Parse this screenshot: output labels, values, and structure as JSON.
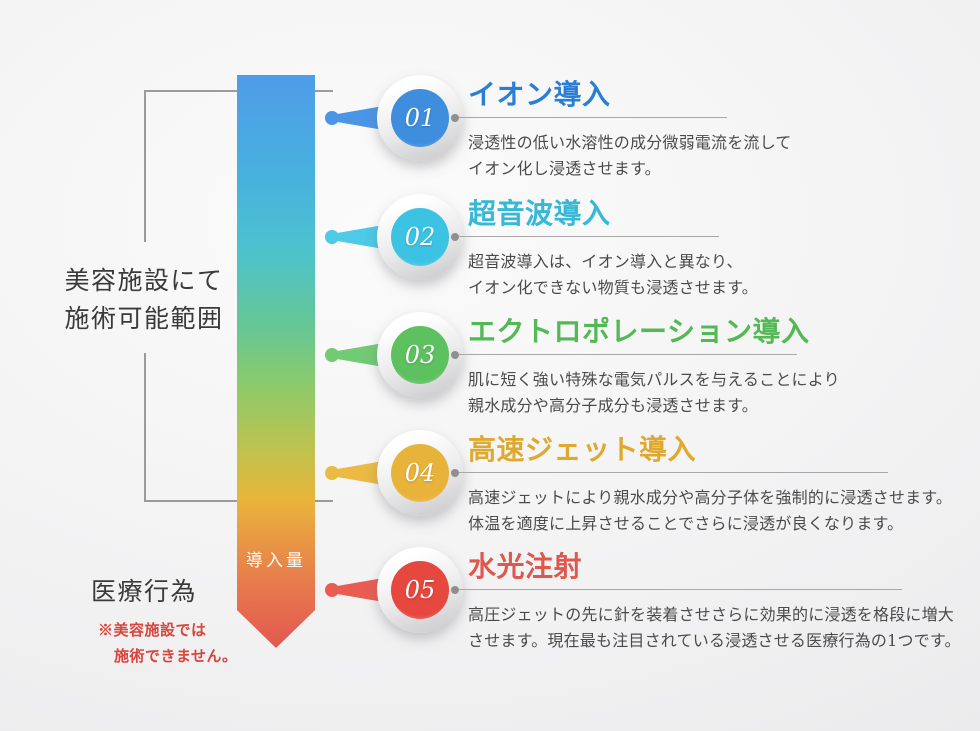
{
  "left_panel": {
    "beauty_label_lines": [
      "美容施設にて",
      "施術可能範囲"
    ],
    "medical_label": "医療行為",
    "medical_note_lines": [
      "※美容施設では",
      "施術できません。"
    ]
  },
  "arrow": {
    "label": "導入量",
    "gradient_colors": [
      "#4f9ce8",
      "#47b2de",
      "#4cc2cf",
      "#66c795",
      "#8cca6b",
      "#c2c24d",
      "#e9b53a",
      "#e87d4d",
      "#e25850"
    ]
  },
  "items": [
    {
      "number": "01",
      "title": "イオン導入",
      "desc_lines": [
        "浸透性の低い水溶性の成分微弱電流を流して",
        "イオン化し浸透させます。"
      ],
      "color_base": "#3f8ede",
      "color_light": "#85bdf2",
      "color_dot": "#4a95e6",
      "color_title": "#2a7ed6"
    },
    {
      "number": "02",
      "title": "超音波導入",
      "desc_lines": [
        "超音波導入は、イオン導入と異なり、",
        "イオン化できない物質も浸透させます。"
      ],
      "color_base": "#3cc3e3",
      "color_light": "#8fe0f2",
      "color_dot": "#4ccae6",
      "color_title": "#35b9d6"
    },
    {
      "number": "03",
      "title": "エクトロポレーション導入",
      "desc_lines": [
        "肌に短く強い特殊な電気パルスを与えることにより",
        "親水成分や高分子成分も浸透させます。"
      ],
      "color_base": "#5ec160",
      "color_light": "#a0dca0",
      "color_dot": "#72cb74",
      "color_title": "#53b955"
    },
    {
      "number": "04",
      "title": "高速ジェット導入",
      "desc_lines": [
        "高速ジェットにより親水成分や高分子体を強制的に浸透させます。",
        "体温を適度に上昇させることでさらに浸透が良くなります。"
      ],
      "color_base": "#e8b33b",
      "color_light": "#f3d489",
      "color_dot": "#eaba45",
      "color_title": "#dfa92f"
    },
    {
      "number": "05",
      "title": "水光注射",
      "desc_lines": [
        "高圧ジェットの先に針を装着させさらに効果的に浸透を格段に増大",
        "させます。現在最も注目されている浸透させる医療行為の1つです。"
      ],
      "color_base": "#e6473f",
      "color_light": "#f29c93",
      "color_dot": "#e95c52",
      "color_title": "#df574d"
    }
  ]
}
